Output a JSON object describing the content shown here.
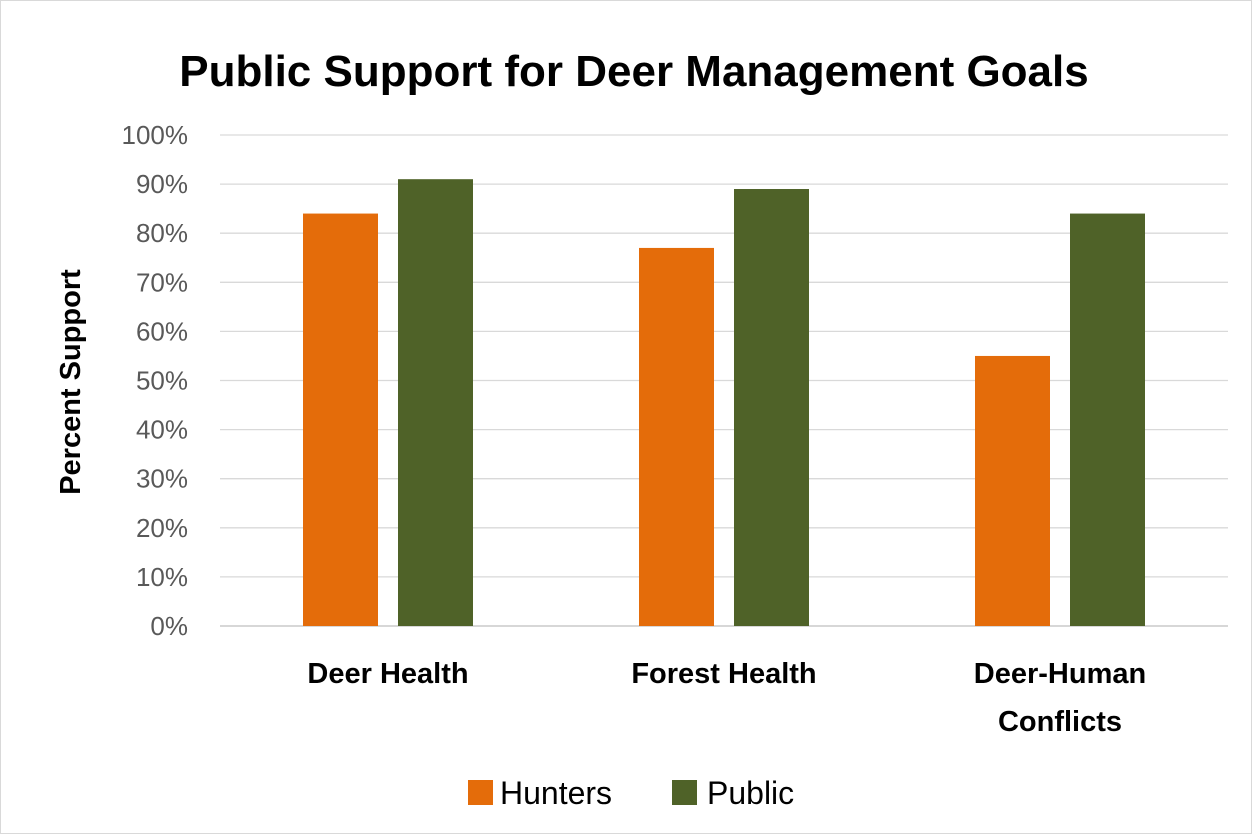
{
  "chart_data": {
    "type": "bar",
    "title": "Public Support for Deer Management Goals",
    "ylabel": "Percent Support",
    "xlabel": "",
    "ylim": [
      0,
      100
    ],
    "yticks": [
      "0%",
      "10%",
      "20%",
      "30%",
      "40%",
      "50%",
      "60%",
      "70%",
      "80%",
      "90%",
      "100%"
    ],
    "categories": [
      [
        "Deer Health"
      ],
      [
        "Forest Health"
      ],
      [
        "Deer-Human",
        "Conflicts"
      ]
    ],
    "series": [
      {
        "name": "Hunters",
        "color": "#e46c0a",
        "values": [
          84,
          77,
          55
        ]
      },
      {
        "name": "Public",
        "color": "#4f6228",
        "values": [
          91,
          89,
          84
        ]
      }
    ],
    "grid": true,
    "legend": "bottom"
  }
}
